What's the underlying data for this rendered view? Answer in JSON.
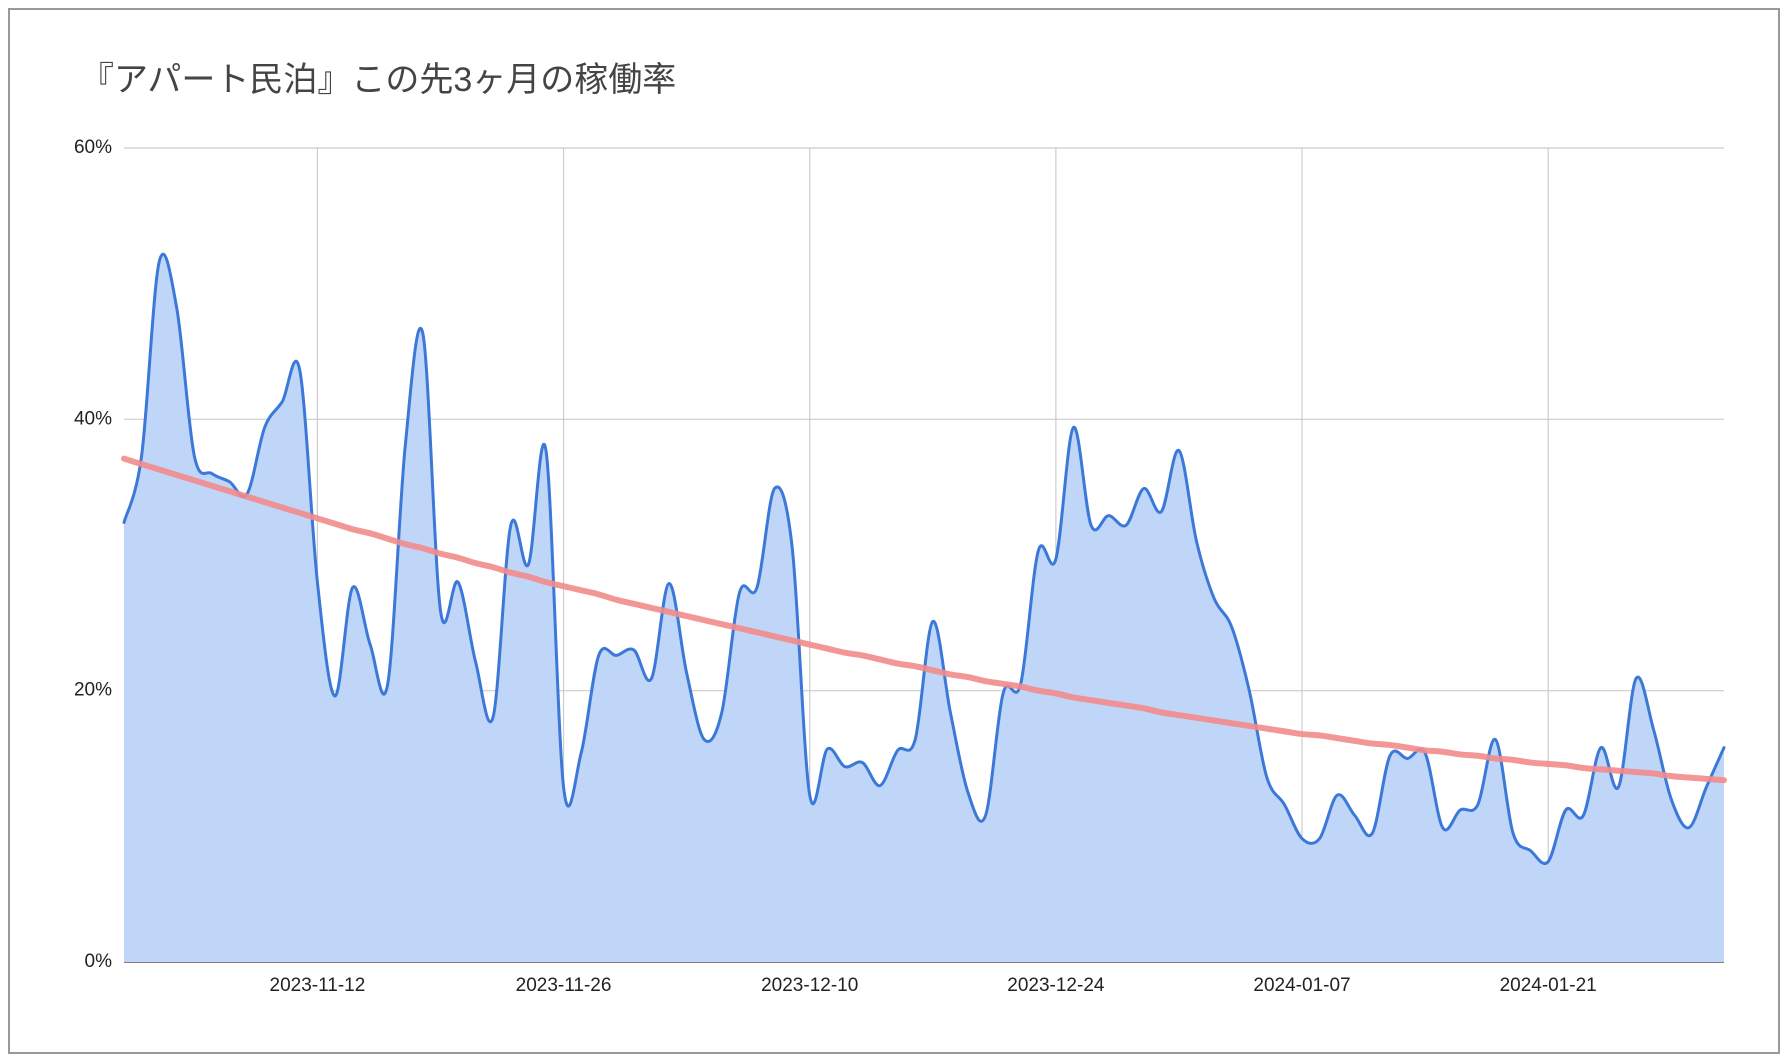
{
  "chart_data": {
    "type": "area",
    "title": "『アパート民泊』この先3ヶ月の稼働率",
    "x": [
      "2023-11-01",
      "2023-11-02",
      "2023-11-03",
      "2023-11-04",
      "2023-11-05",
      "2023-11-06",
      "2023-11-07",
      "2023-11-08",
      "2023-11-09",
      "2023-11-10",
      "2023-11-11",
      "2023-11-12",
      "2023-11-13",
      "2023-11-14",
      "2023-11-15",
      "2023-11-16",
      "2023-11-17",
      "2023-11-18",
      "2023-11-19",
      "2023-11-20",
      "2023-11-21",
      "2023-11-22",
      "2023-11-23",
      "2023-11-24",
      "2023-11-25",
      "2023-11-26",
      "2023-11-27",
      "2023-11-28",
      "2023-11-29",
      "2023-11-30",
      "2023-12-01",
      "2023-12-02",
      "2023-12-03",
      "2023-12-04",
      "2023-12-05",
      "2023-12-06",
      "2023-12-07",
      "2023-12-08",
      "2023-12-09",
      "2023-12-10",
      "2023-12-11",
      "2023-12-12",
      "2023-12-13",
      "2023-12-14",
      "2023-12-15",
      "2023-12-16",
      "2023-12-17",
      "2023-12-18",
      "2023-12-19",
      "2023-12-20",
      "2023-12-21",
      "2023-12-22",
      "2023-12-23",
      "2023-12-24",
      "2023-12-25",
      "2023-12-26",
      "2023-12-27",
      "2023-12-28",
      "2023-12-29",
      "2023-12-30",
      "2023-12-31",
      "2024-01-01",
      "2024-01-02",
      "2024-01-03",
      "2024-01-04",
      "2024-01-05",
      "2024-01-06",
      "2024-01-07",
      "2024-01-08",
      "2024-01-09",
      "2024-01-10",
      "2024-01-11",
      "2024-01-12",
      "2024-01-13",
      "2024-01-14",
      "2024-01-15",
      "2024-01-16",
      "2024-01-17",
      "2024-01-18",
      "2024-01-19",
      "2024-01-20",
      "2024-01-21",
      "2024-01-22",
      "2024-01-23",
      "2024-01-24",
      "2024-01-25",
      "2024-01-26",
      "2024-01-27",
      "2024-01-28",
      "2024-01-29",
      "2024-01-30",
      "2024-01-31"
    ],
    "series": [
      {
        "color": "#3c78d8",
        "fill": "#bfd6f9",
        "values": [
          32.4,
          37.3,
          51.6,
          48.2,
          37.3,
          36,
          35.4,
          34.5,
          39.4,
          41.3,
          43.6,
          28,
          19.6,
          27.6,
          23.4,
          20.5,
          38.1,
          46.3,
          25.9,
          28,
          22.1,
          18.1,
          32.2,
          29.3,
          37.7,
          12.9,
          15.4,
          22.6,
          22.6,
          23,
          20.9,
          27.9,
          21.3,
          16.4,
          18.4,
          27.2,
          27.6,
          34.9,
          30.6,
          12.3,
          15.7,
          14.4,
          14.7,
          13,
          15.6,
          16.4,
          25.1,
          18.4,
          12.5,
          10.8,
          19.8,
          20.5,
          30.3,
          29.7,
          39.4,
          32.2,
          32.9,
          32.2,
          34.9,
          33.2,
          37.7,
          31,
          26.8,
          24.7,
          20,
          13.6,
          11.6,
          9.1,
          9.1,
          12.3,
          10.8,
          9.5,
          15.2,
          15,
          15.4,
          9.9,
          11.2,
          11.6,
          16.4,
          9.5,
          8.2,
          7.4,
          11.2,
          10.8,
          15.8,
          12.9,
          20.9,
          17.1,
          12,
          9.9,
          12.9,
          15.8
        ]
      },
      {
        "color": "#f28b8b",
        "values": [
          37.1,
          36.7,
          36.3,
          35.9,
          35.5,
          35.1,
          34.7,
          34.3,
          33.9,
          33.5,
          33.1,
          32.7,
          32.3,
          31.9,
          31.6,
          31.2,
          30.8,
          30.5,
          30.1,
          29.8,
          29.4,
          29.1,
          28.7,
          28.4,
          28,
          27.7,
          27.4,
          27.1,
          26.7,
          26.4,
          26.1,
          25.8,
          25.5,
          25.2,
          24.9,
          24.6,
          24.3,
          24,
          23.7,
          23.4,
          23.1,
          22.8,
          22.6,
          22.3,
          22,
          21.8,
          21.5,
          21.2,
          21,
          20.7,
          20.5,
          20.3,
          20,
          19.8,
          19.5,
          19.3,
          19.1,
          18.9,
          18.7,
          18.4,
          18.2,
          18,
          17.8,
          17.6,
          17.4,
          17.2,
          17,
          16.8,
          16.7,
          16.5,
          16.3,
          16.1,
          16,
          15.8,
          15.6,
          15.5,
          15.3,
          15.2,
          15,
          14.9,
          14.7,
          14.6,
          14.5,
          14.3,
          14.2,
          14.1,
          14,
          13.9,
          13.7,
          13.6,
          13.5,
          13.4
        ]
      }
    ],
    "xlim": [
      "2023-11-01",
      "2024-01-31"
    ],
    "xticks": [
      "2023-11-12",
      "2023-11-26",
      "2023-12-10",
      "2023-12-24",
      "2024-01-07",
      "2024-01-21"
    ],
    "ylim": [
      0,
      60
    ],
    "yticks": [
      {
        "value": 0,
        "label": "0%"
      },
      {
        "value": 20,
        "label": "20%"
      },
      {
        "value": 40,
        "label": "40%"
      },
      {
        "value": 60,
        "label": "60%"
      }
    ],
    "grid": true
  }
}
